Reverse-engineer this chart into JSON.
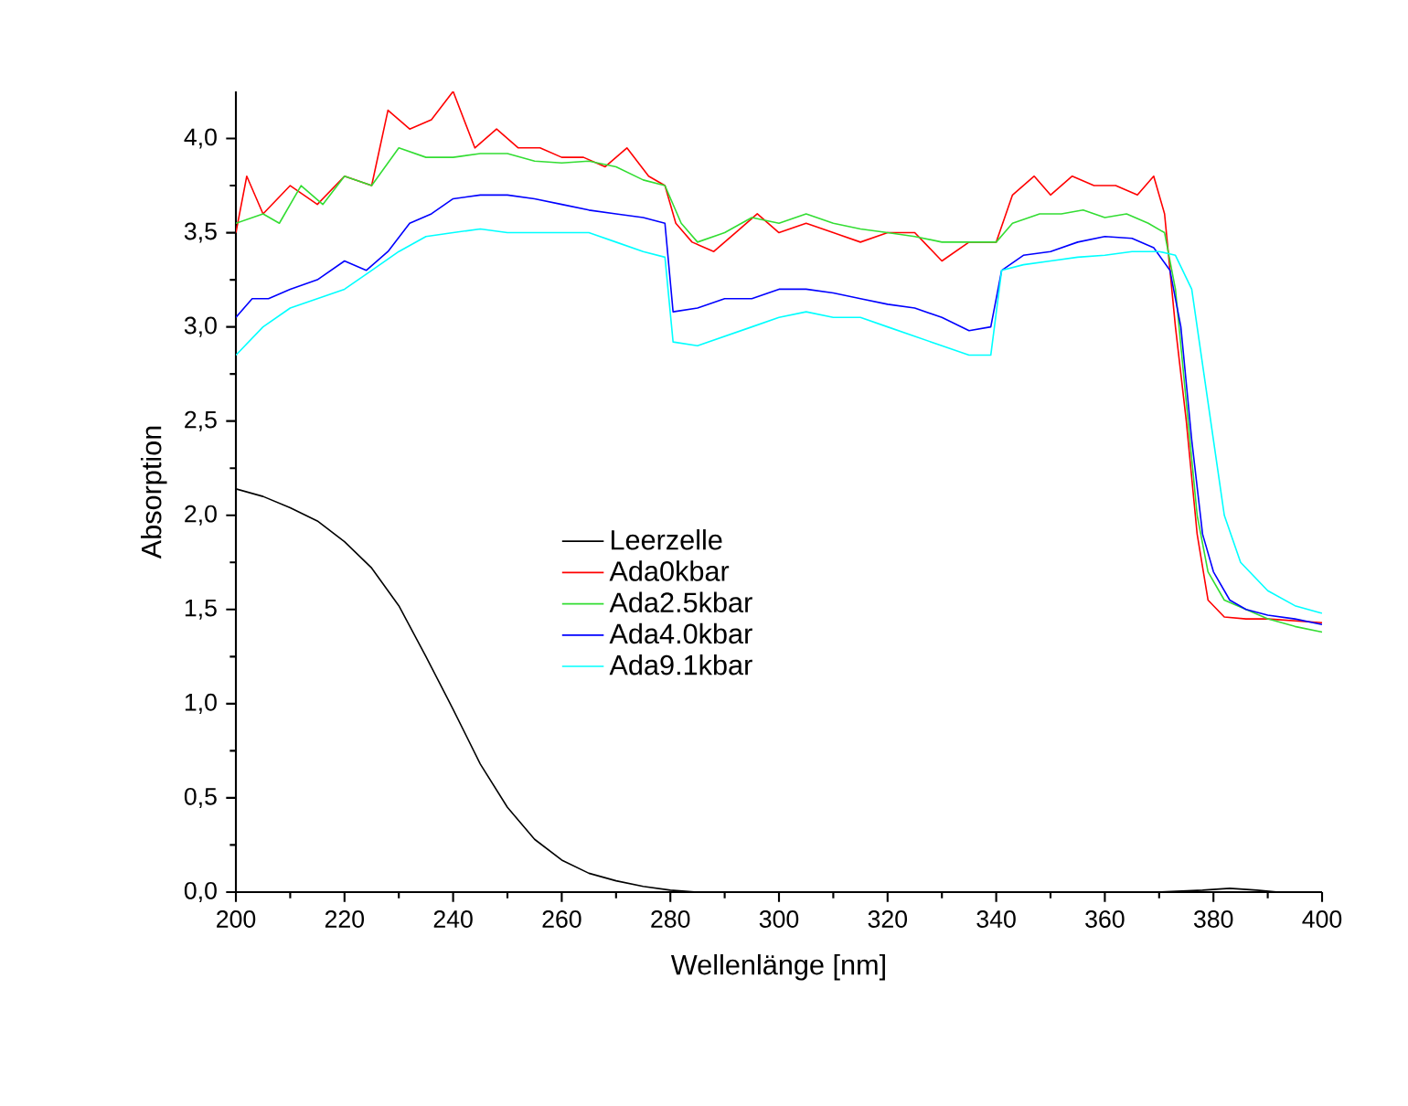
{
  "chart_data": {
    "type": "line",
    "xlabel": "Wellenlänge [nm]",
    "ylabel": "Absorption",
    "xlim": [
      200,
      400
    ],
    "ylim": [
      0,
      4.25
    ],
    "xticks": [
      200,
      220,
      240,
      260,
      280,
      300,
      320,
      340,
      360,
      380,
      400
    ],
    "yticks": [
      {
        "value": 0,
        "label": "0,0"
      },
      {
        "value": 0.5,
        "label": "0,5"
      },
      {
        "value": 1,
        "label": "1,0"
      },
      {
        "value": 1.5,
        "label": "1,5"
      },
      {
        "value": 2,
        "label": "2,0"
      },
      {
        "value": 2.5,
        "label": "2,5"
      },
      {
        "value": 3,
        "label": "3,0"
      },
      {
        "value": 3.5,
        "label": "3,5"
      },
      {
        "value": 4,
        "label": "4,0"
      }
    ],
    "grid": false,
    "legend": "center",
    "marker": "none",
    "line_style": "solid",
    "series": [
      {
        "name": "Leerzelle",
        "color": "#000000",
        "x": [
          200,
          205,
          210,
          215,
          220,
          225,
          230,
          235,
          240,
          245,
          250,
          255,
          260,
          265,
          270,
          275,
          280,
          285,
          300,
          340,
          370,
          378,
          383,
          388,
          392
        ],
        "values": [
          2.14,
          2.1,
          2.04,
          1.97,
          1.86,
          1.72,
          1.52,
          1.25,
          0.97,
          0.68,
          0.45,
          0.28,
          0.17,
          0.1,
          0.06,
          0.03,
          0.01,
          0,
          0,
          0,
          0,
          0.01,
          0.02,
          0.01,
          0
        ]
      },
      {
        "name": "Ada0kbar",
        "color": "#ff0000",
        "x": [
          200,
          202,
          205,
          210,
          215,
          220,
          225,
          228,
          232,
          236,
          240,
          244,
          248,
          252,
          256,
          260,
          264,
          268,
          272,
          276,
          279,
          281,
          284,
          288,
          292,
          296,
          300,
          305,
          310,
          315,
          320,
          325,
          330,
          335,
          340,
          343,
          347,
          350,
          354,
          358,
          362,
          366,
          369,
          371,
          373,
          375,
          377,
          379,
          382,
          386,
          390,
          395,
          400
        ],
        "values": [
          3.5,
          3.8,
          3.6,
          3.75,
          3.65,
          3.8,
          3.75,
          4.15,
          4.05,
          4.1,
          4.25,
          3.95,
          4.05,
          3.95,
          3.95,
          3.9,
          3.9,
          3.85,
          3.95,
          3.8,
          3.75,
          3.55,
          3.45,
          3.4,
          3.5,
          3.6,
          3.5,
          3.55,
          3.5,
          3.45,
          3.5,
          3.5,
          3.35,
          3.45,
          3.45,
          3.7,
          3.8,
          3.7,
          3.8,
          3.75,
          3.75,
          3.7,
          3.8,
          3.6,
          3.0,
          2.5,
          1.9,
          1.55,
          1.46,
          1.45,
          1.45,
          1.44,
          1.43
        ]
      },
      {
        "name": "Ada2.5kbar",
        "color": "#33dd33",
        "x": [
          200,
          205,
          208,
          212,
          216,
          220,
          225,
          230,
          235,
          240,
          245,
          250,
          255,
          260,
          265,
          270,
          275,
          279,
          282,
          285,
          290,
          295,
          300,
          305,
          310,
          315,
          320,
          325,
          330,
          335,
          340,
          343,
          348,
          352,
          356,
          360,
          364,
          368,
          371,
          373,
          375,
          377,
          379,
          382,
          386,
          390,
          395,
          400
        ],
        "values": [
          3.55,
          3.6,
          3.55,
          3.75,
          3.65,
          3.8,
          3.75,
          3.95,
          3.9,
          3.9,
          3.92,
          3.92,
          3.88,
          3.87,
          3.88,
          3.85,
          3.78,
          3.75,
          3.55,
          3.45,
          3.5,
          3.58,
          3.55,
          3.6,
          3.55,
          3.52,
          3.5,
          3.48,
          3.45,
          3.45,
          3.45,
          3.55,
          3.6,
          3.6,
          3.62,
          3.58,
          3.6,
          3.55,
          3.5,
          3.2,
          2.6,
          2.0,
          1.7,
          1.55,
          1.5,
          1.45,
          1.41,
          1.38
        ]
      },
      {
        "name": "Ada4.0kbar",
        "color": "#0000ff",
        "x": [
          200,
          203,
          206,
          210,
          215,
          220,
          224,
          228,
          232,
          236,
          240,
          245,
          250,
          255,
          260,
          265,
          270,
          275,
          279,
          280.5,
          285,
          290,
          295,
          300,
          305,
          310,
          315,
          320,
          325,
          330,
          335,
          339,
          341,
          345,
          350,
          355,
          360,
          365,
          369,
          372,
          374,
          376,
          378,
          380,
          383,
          386,
          390,
          395,
          400
        ],
        "values": [
          3.05,
          3.15,
          3.15,
          3.2,
          3.25,
          3.35,
          3.3,
          3.4,
          3.55,
          3.6,
          3.68,
          3.7,
          3.7,
          3.68,
          3.65,
          3.62,
          3.6,
          3.58,
          3.55,
          3.08,
          3.1,
          3.15,
          3.15,
          3.2,
          3.2,
          3.18,
          3.15,
          3.12,
          3.1,
          3.05,
          2.98,
          3.0,
          3.3,
          3.38,
          3.4,
          3.45,
          3.48,
          3.47,
          3.42,
          3.3,
          3.0,
          2.4,
          1.9,
          1.7,
          1.55,
          1.5,
          1.47,
          1.45,
          1.42
        ]
      },
      {
        "name": "Ada9.1kbar",
        "color": "#00ffff",
        "x": [
          200,
          205,
          210,
          215,
          220,
          225,
          230,
          235,
          240,
          245,
          250,
          255,
          260,
          265,
          270,
          275,
          279,
          280.5,
          285,
          290,
          295,
          300,
          305,
          310,
          315,
          320,
          325,
          330,
          335,
          339,
          341,
          345,
          350,
          355,
          360,
          365,
          370,
          373,
          376,
          378,
          380,
          382,
          385,
          390,
          395,
          400
        ],
        "values": [
          2.85,
          3.0,
          3.1,
          3.15,
          3.2,
          3.3,
          3.4,
          3.48,
          3.5,
          3.52,
          3.5,
          3.5,
          3.5,
          3.5,
          3.45,
          3.4,
          3.37,
          2.92,
          2.9,
          2.95,
          3.0,
          3.05,
          3.08,
          3.05,
          3.05,
          3.0,
          2.95,
          2.9,
          2.85,
          2.85,
          3.3,
          3.33,
          3.35,
          3.37,
          3.38,
          3.4,
          3.4,
          3.38,
          3.2,
          2.8,
          2.4,
          2.0,
          1.75,
          1.6,
          1.52,
          1.48
        ]
      }
    ]
  }
}
